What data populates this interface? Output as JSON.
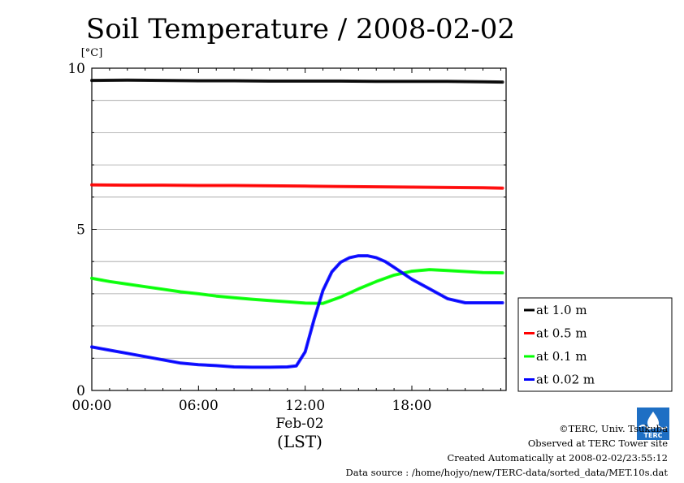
{
  "chart_data": {
    "type": "line",
    "title": "Soil Temperature / 2008-02-02",
    "y_unit": "[°C]",
    "ylim": [
      0,
      10
    ],
    "y_ticks": [
      0,
      5,
      10
    ],
    "x_ticks": [
      "00:00",
      "06:00",
      "12:00",
      "18:00"
    ],
    "x_date_label": "Feb-02",
    "x_timezone_label": "(LST)",
    "xlim_hours": [
      0,
      23.3
    ],
    "grid": true,
    "legend_position": "right",
    "series": [
      {
        "name": "at 1.0 m",
        "color": "#000000",
        "x_hours": [
          0,
          2,
          4,
          6,
          8,
          10,
          12,
          14,
          16,
          18,
          20,
          22,
          23.1
        ],
        "values": [
          9.62,
          9.63,
          9.62,
          9.61,
          9.61,
          9.6,
          9.6,
          9.6,
          9.59,
          9.59,
          9.59,
          9.58,
          9.57
        ]
      },
      {
        "name": "at 0.5 m",
        "color": "#ff0000",
        "x_hours": [
          0,
          2,
          4,
          6,
          8,
          10,
          12,
          14,
          16,
          18,
          20,
          22,
          23.1
        ],
        "values": [
          6.38,
          6.37,
          6.37,
          6.36,
          6.36,
          6.35,
          6.34,
          6.33,
          6.32,
          6.31,
          6.3,
          6.29,
          6.28
        ]
      },
      {
        "name": "at 0.1 m",
        "color": "#00ff00",
        "x_hours": [
          0,
          1,
          2,
          3,
          4,
          5,
          6,
          7,
          8,
          9,
          10,
          11,
          12,
          13,
          14,
          15,
          16,
          17,
          18,
          19,
          20,
          21,
          22,
          23.1
        ],
        "values": [
          3.48,
          3.38,
          3.3,
          3.22,
          3.14,
          3.06,
          3.0,
          2.93,
          2.88,
          2.83,
          2.79,
          2.75,
          2.71,
          2.7,
          2.9,
          3.15,
          3.38,
          3.58,
          3.7,
          3.75,
          3.72,
          3.69,
          3.66,
          3.65
        ]
      },
      {
        "name": "at 0.02 m",
        "color": "#0000ff",
        "x_hours": [
          0,
          1,
          2,
          3,
          4,
          5,
          6,
          7,
          8,
          9,
          10,
          11,
          11.5,
          12,
          12.5,
          13,
          13.5,
          14,
          14.5,
          15,
          15.5,
          16,
          16.5,
          17,
          18,
          19,
          20,
          21,
          22,
          23.1
        ],
        "values": [
          1.35,
          1.25,
          1.15,
          1.05,
          0.95,
          0.85,
          0.8,
          0.77,
          0.73,
          0.72,
          0.72,
          0.73,
          0.76,
          1.2,
          2.2,
          3.1,
          3.68,
          3.98,
          4.12,
          4.18,
          4.18,
          4.12,
          4.0,
          3.82,
          3.45,
          3.15,
          2.85,
          2.72,
          2.72,
          2.72
        ]
      }
    ]
  },
  "footer": {
    "copyright": "©TERC, Univ. Tsukuba",
    "observed": "Observed at TERC Tower site",
    "created": "Created Automatically at 2008-02-02/23:55:12",
    "source": "Data source : /home/hojyo/new/TERC-data/sorted_data/MET.10s.dat"
  },
  "logo": {
    "text": "TERC",
    "color": "#1e6fc4"
  }
}
